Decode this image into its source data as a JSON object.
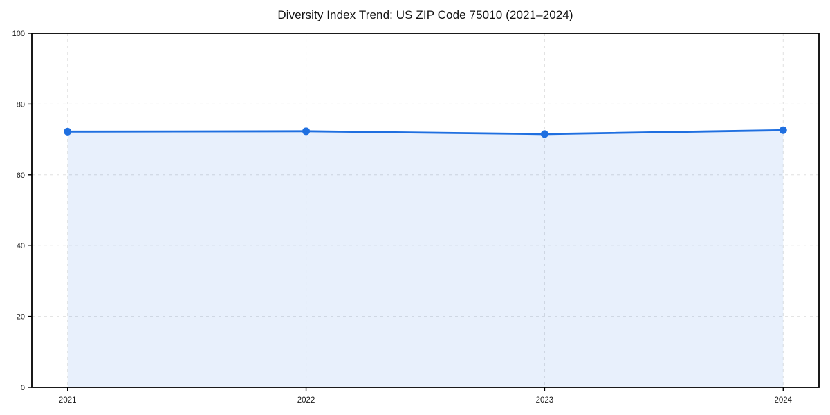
{
  "chart_data": {
    "type": "line",
    "title": "Diversity Index Trend: US ZIP Code 75010 (2021–2024)",
    "x": [
      2021,
      2022,
      2023,
      2024
    ],
    "x_tick_labels": [
      "2021",
      "2022",
      "2023",
      "2024"
    ],
    "series": [
      {
        "name": "Diversity Index",
        "values": [
          72.2,
          72.3,
          71.5,
          72.6
        ]
      }
    ],
    "xlabel": "",
    "ylabel": "",
    "ylim": [
      0,
      100
    ],
    "yticks": [
      0,
      20,
      40,
      60,
      80,
      100
    ],
    "grid": "dashed both axes",
    "legend_position": "none",
    "area_under_line": true,
    "markers": true,
    "style": {
      "line_color": "#1f6fe0",
      "marker_color": "#1f6fe0",
      "area_fill_color": "#1f6fe0",
      "area_fill_opacity": 0.1,
      "grid_color": "#e0e0e0",
      "axis_color": "#000000",
      "tick_label_color": "#1a1a1a",
      "background_color": "#ffffff"
    }
  }
}
